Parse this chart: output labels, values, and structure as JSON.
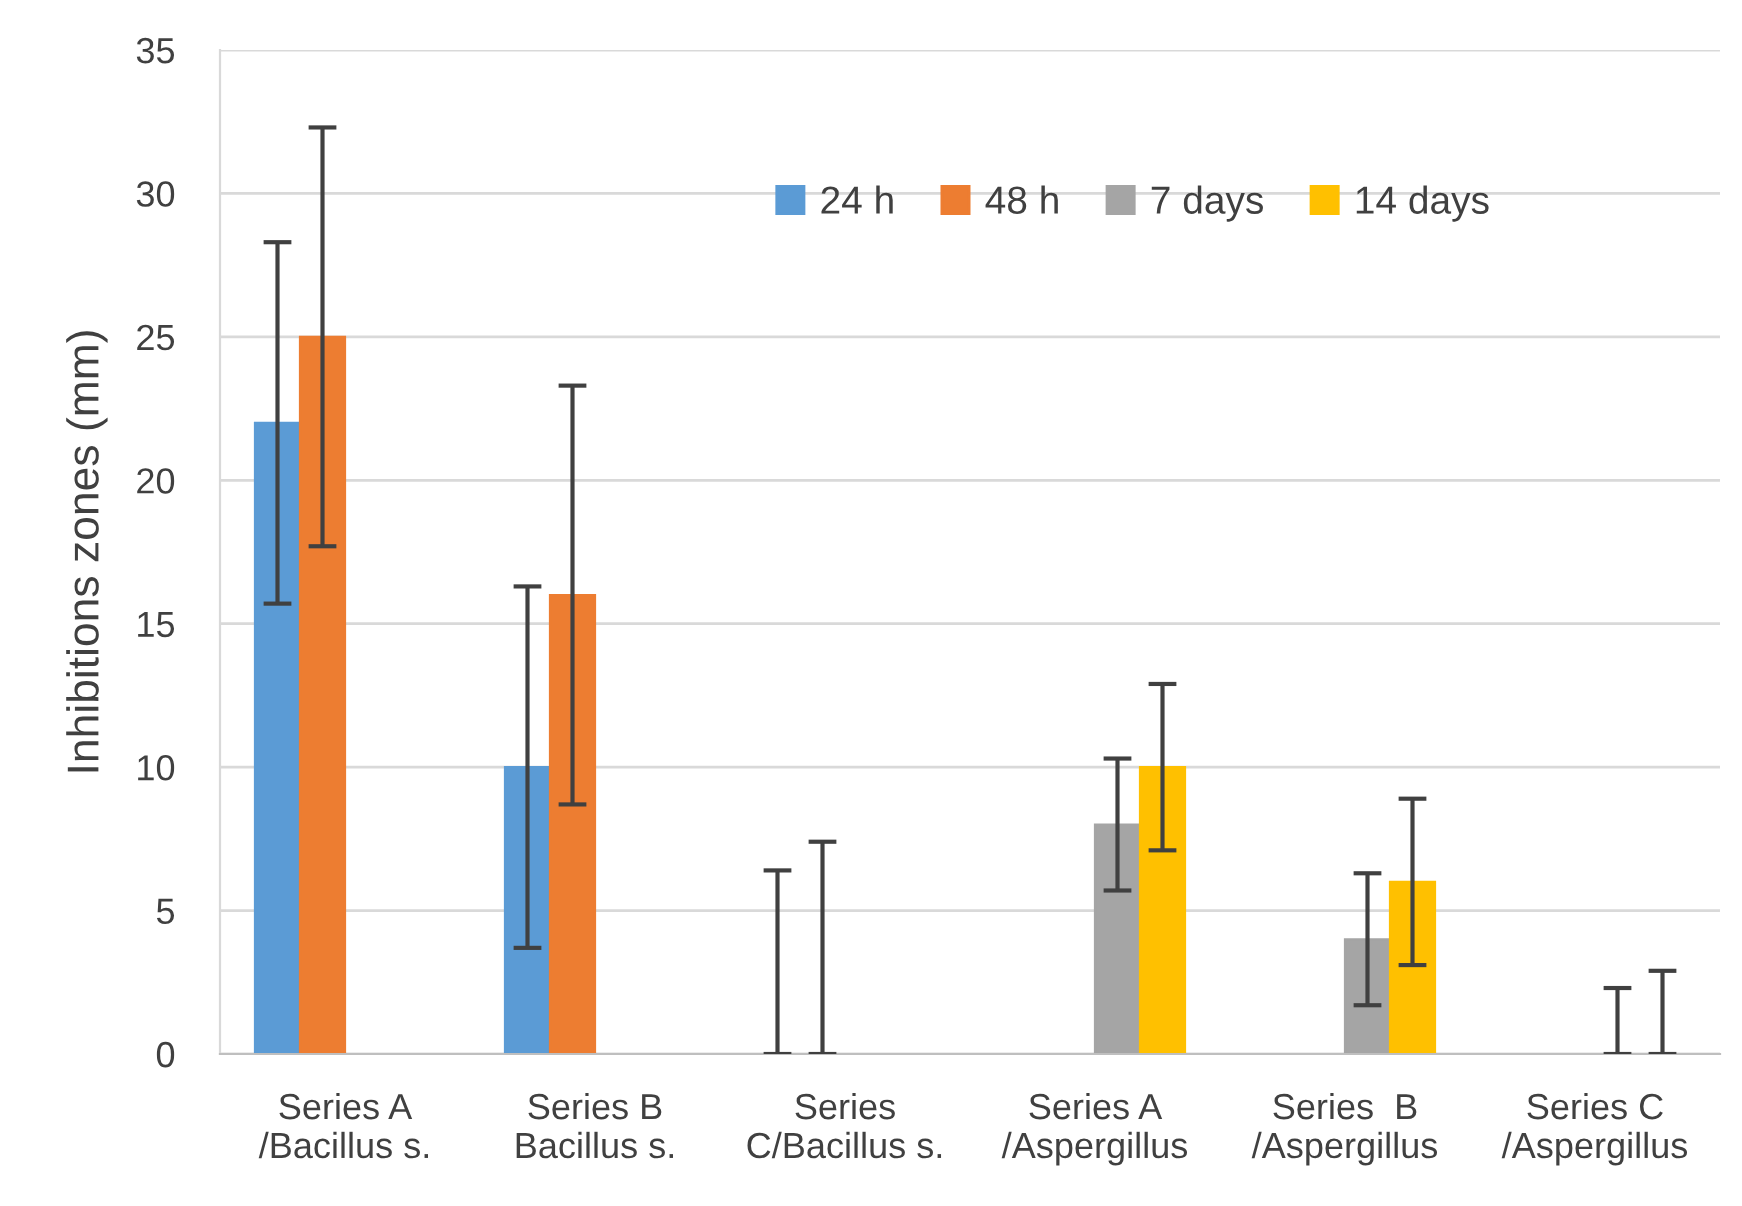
{
  "chart_data": {
    "type": "bar",
    "ylabel": "Inhibitions zones (mm)",
    "categories": [
      "Series A\n/Bacillus s.",
      "Series B\nBacillus s.",
      "Series\nC/Bacillus s.",
      "Series A\n/Aspergillus",
      "Series  B\n/Aspergillus",
      "Series C\n/Aspergillus"
    ],
    "series": [
      {
        "name": "24 h",
        "color": "#5b9bd5",
        "values": [
          22,
          10,
          0,
          null,
          null,
          null
        ],
        "errors": [
          [
            15.7,
            28.3
          ],
          [
            3.7,
            16.3
          ],
          [
            0,
            6.4
          ],
          null,
          null,
          null
        ]
      },
      {
        "name": "48 h",
        "color": "#ed7d31",
        "values": [
          25,
          16,
          0,
          null,
          null,
          null
        ],
        "errors": [
          [
            17.7,
            32.3
          ],
          [
            8.7,
            23.3
          ],
          [
            0,
            7.4
          ],
          null,
          null,
          null
        ]
      },
      {
        "name": "7 days",
        "color": "#a5a5a5",
        "values": [
          null,
          null,
          null,
          8,
          4,
          0
        ],
        "errors": [
          null,
          null,
          null,
          [
            5.7,
            10.3
          ],
          [
            1.7,
            6.3
          ],
          [
            0,
            2.3
          ]
        ]
      },
      {
        "name": "14 days",
        "color": "#ffc000",
        "values": [
          null,
          null,
          null,
          10,
          6,
          0
        ],
        "errors": [
          null,
          null,
          null,
          [
            7.1,
            12.9
          ],
          [
            3.1,
            8.9
          ],
          [
            0,
            2.9
          ]
        ]
      }
    ],
    "ylim": [
      0,
      35
    ],
    "yticks": [
      0,
      5,
      10,
      15,
      20,
      25,
      30,
      35
    ],
    "grid": "y",
    "legend": "top right"
  }
}
